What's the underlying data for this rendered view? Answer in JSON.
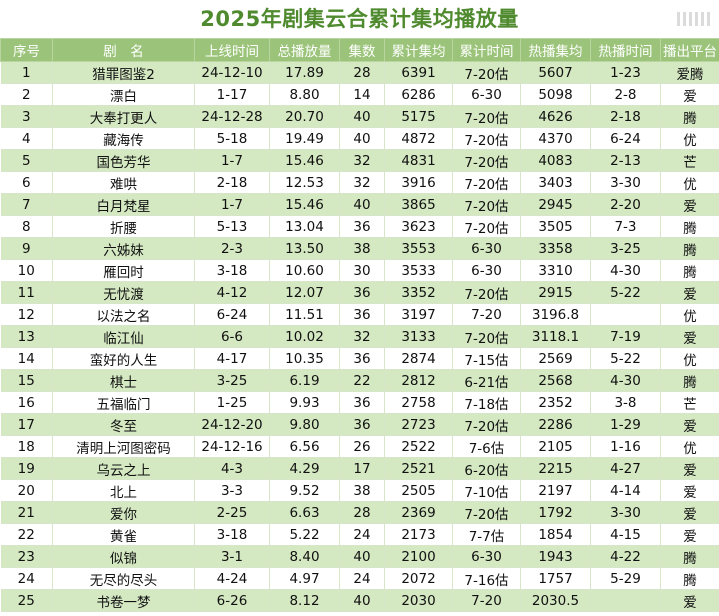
{
  "title": "2025年剧集云合累计集均播放量",
  "columns": [
    "序号",
    "剧　名",
    "上线时间",
    "总播放量",
    "集数",
    "累计集均",
    "累计时间",
    "热播集均",
    "热播时间",
    "播出平台"
  ],
  "rows": [
    [
      "1",
      "猎罪图鉴2",
      "24-12-10",
      "17.89",
      "28",
      "6391",
      "7-20估",
      "5607",
      "1-23",
      "爱腾"
    ],
    [
      "2",
      "漂白",
      "1-17",
      "8.80",
      "14",
      "6286",
      "6-30",
      "5098",
      "2-8",
      "爱"
    ],
    [
      "3",
      "大奉打更人",
      "24-12-28",
      "20.70",
      "40",
      "5175",
      "7-20估",
      "4626",
      "2-18",
      "腾"
    ],
    [
      "4",
      "藏海传",
      "5-18",
      "19.49",
      "40",
      "4872",
      "7-20估",
      "4370",
      "6-24",
      "优"
    ],
    [
      "5",
      "国色芳华",
      "1-7",
      "15.46",
      "32",
      "4831",
      "7-20估",
      "4083",
      "2-13",
      "芒"
    ],
    [
      "6",
      "难哄",
      "2-18",
      "12.53",
      "32",
      "3916",
      "7-20估",
      "3403",
      "3-30",
      "优"
    ],
    [
      "7",
      "白月梵星",
      "1-7",
      "15.46",
      "40",
      "3865",
      "7-20估",
      "2945",
      "2-20",
      "爱"
    ],
    [
      "8",
      "折腰",
      "5-13",
      "13.04",
      "36",
      "3623",
      "7-20估",
      "3505",
      "7-3",
      "腾"
    ],
    [
      "9",
      "六姊妹",
      "2-3",
      "13.50",
      "38",
      "3553",
      "6-30",
      "3358",
      "3-25",
      "腾"
    ],
    [
      "10",
      "雁回时",
      "3-18",
      "10.60",
      "30",
      "3533",
      "6-30",
      "3310",
      "4-30",
      "腾"
    ],
    [
      "11",
      "无忧渡",
      "4-12",
      "12.07",
      "36",
      "3352",
      "7-20估",
      "2915",
      "5-22",
      "爱"
    ],
    [
      "12",
      "以法之名",
      "6-24",
      "11.51",
      "36",
      "3197",
      "7-20",
      "3196.8",
      "",
      "优"
    ],
    [
      "13",
      "临江仙",
      "6-6",
      "10.02",
      "32",
      "3133",
      "7-20估",
      "3118.1",
      "7-19",
      "爱"
    ],
    [
      "14",
      "蛮好的人生",
      "4-17",
      "10.35",
      "36",
      "2874",
      "7-15估",
      "2569",
      "5-22",
      "优"
    ],
    [
      "15",
      "棋士",
      "3-25",
      "6.19",
      "22",
      "2812",
      "6-21估",
      "2568",
      "4-30",
      "腾"
    ],
    [
      "16",
      "五福临门",
      "1-25",
      "9.93",
      "36",
      "2758",
      "7-18估",
      "2352",
      "3-8",
      "芒"
    ],
    [
      "17",
      "冬至",
      "24-12-20",
      "9.80",
      "36",
      "2723",
      "7-20估",
      "2286",
      "1-29",
      "爱"
    ],
    [
      "18",
      "清明上河图密码",
      "24-12-16",
      "6.56",
      "26",
      "2522",
      "7-6估",
      "2105",
      "1-16",
      "优"
    ],
    [
      "19",
      "乌云之上",
      "4-3",
      "4.29",
      "17",
      "2521",
      "6-20估",
      "2215",
      "4-27",
      "爱"
    ],
    [
      "20",
      "北上",
      "3-3",
      "9.52",
      "38",
      "2505",
      "7-10估",
      "2197",
      "4-14",
      "爱"
    ],
    [
      "21",
      "爱你",
      "2-25",
      "6.63",
      "28",
      "2369",
      "7-20估",
      "1792",
      "3-30",
      "爱"
    ],
    [
      "22",
      "黄雀",
      "3-18",
      "5.22",
      "24",
      "2173",
      "7-7估",
      "1854",
      "4-15",
      "爱"
    ],
    [
      "23",
      "似锦",
      "3-1",
      "8.40",
      "40",
      "2100",
      "6-30",
      "1943",
      "4-22",
      "腾"
    ],
    [
      "24",
      "无尽的尽头",
      "4-24",
      "4.97",
      "24",
      "2072",
      "7-16估",
      "1757",
      "5-29",
      "腾"
    ],
    [
      "25",
      "书卷一梦",
      "6-26",
      "8.12",
      "40",
      "2030",
      "7-20",
      "2030.5",
      "",
      "爱"
    ]
  ]
}
